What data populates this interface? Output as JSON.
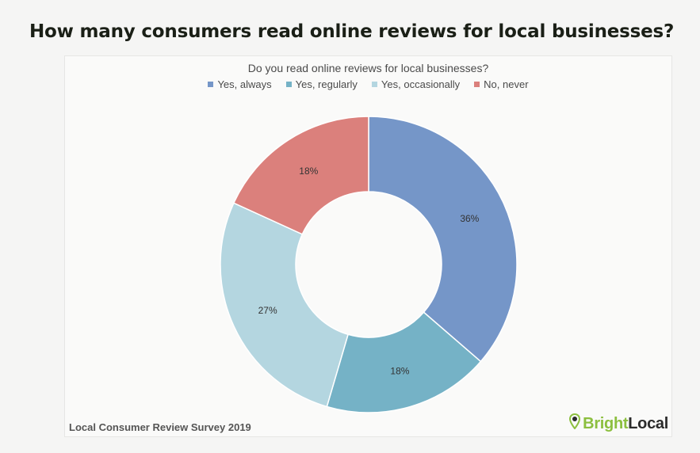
{
  "page": {
    "title": "How many consumers read online reviews for local businesses?"
  },
  "footer": {
    "source": "Local Consumer Review Survey 2019",
    "brand_bright": "Bright",
    "brand_local": "Local"
  },
  "chart_data": {
    "type": "pie",
    "donut": true,
    "title": "Do you read online reviews for local businesses?",
    "legend_position": "top",
    "categories": [
      "Yes, always",
      "Yes, regularly",
      "Yes, occasionally",
      "No, never"
    ],
    "values": [
      36,
      18,
      27,
      18
    ],
    "data_labels": [
      "36%",
      "18%",
      "27%",
      "18%"
    ],
    "colors": [
      "#7596c8",
      "#75b2c6",
      "#b4d6e0",
      "#db807c"
    ]
  }
}
